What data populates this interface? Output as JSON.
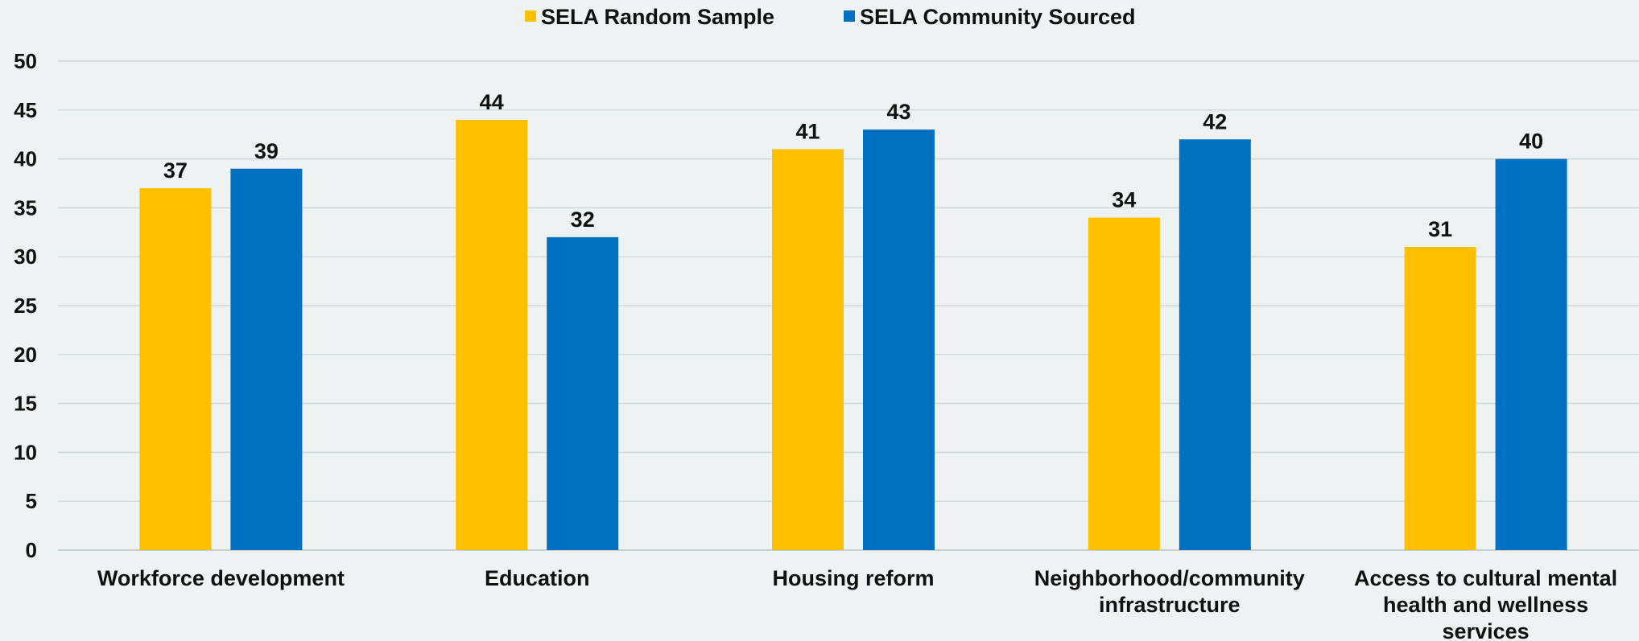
{
  "chart_data": {
    "type": "bar",
    "categories": [
      [
        "Workforce development"
      ],
      [
        "Education"
      ],
      [
        "Housing reform"
      ],
      [
        "Neighborhood/community",
        "infrastructure"
      ],
      [
        "Access to cultural mental",
        "health and wellness",
        "services"
      ]
    ],
    "series": [
      {
        "name": "SELA Random Sample",
        "color": "#FFC000",
        "values": [
          37,
          44,
          41,
          34,
          31
        ]
      },
      {
        "name": "SELA Community Sourced",
        "color": "#0070C0",
        "values": [
          39,
          32,
          43,
          42,
          40
        ]
      }
    ],
    "ylim": [
      0,
      50
    ],
    "yticks": [
      0,
      5,
      10,
      15,
      20,
      25,
      30,
      35,
      40,
      45,
      50
    ],
    "grid": true,
    "legend_position": "top-center",
    "data_labels": true
  }
}
